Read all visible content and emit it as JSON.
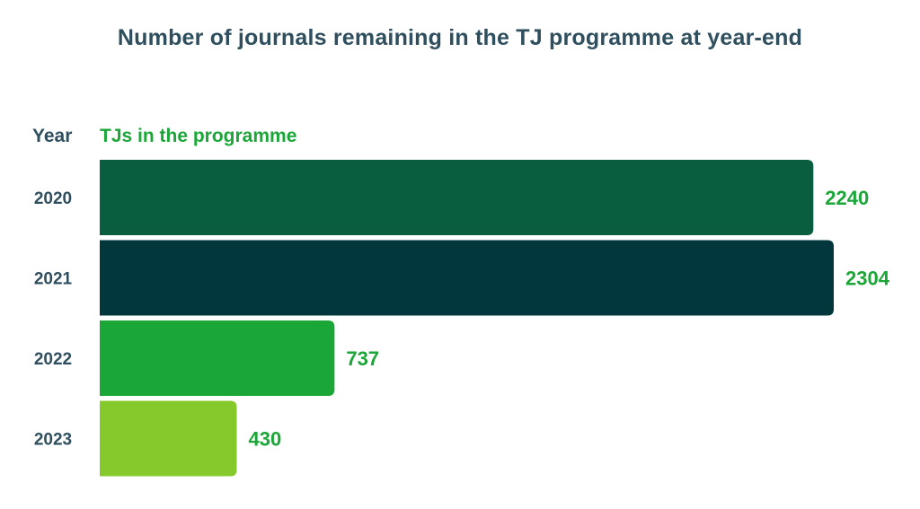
{
  "chart_data": {
    "type": "bar",
    "orientation": "horizontal",
    "title": "Number of journals remaining in the TJ programme at year-end",
    "category_header": "Year",
    "value_header": "TJs in the programme",
    "categories": [
      "2020",
      "2021",
      "2022",
      "2023"
    ],
    "values": [
      2240,
      2304,
      737,
      430
    ],
    "colors": [
      "#0a5e40",
      "#03373e",
      "#1ba638",
      "#86c92a"
    ],
    "value_label_color": "#1ba638",
    "grid": false,
    "legend": "none"
  }
}
